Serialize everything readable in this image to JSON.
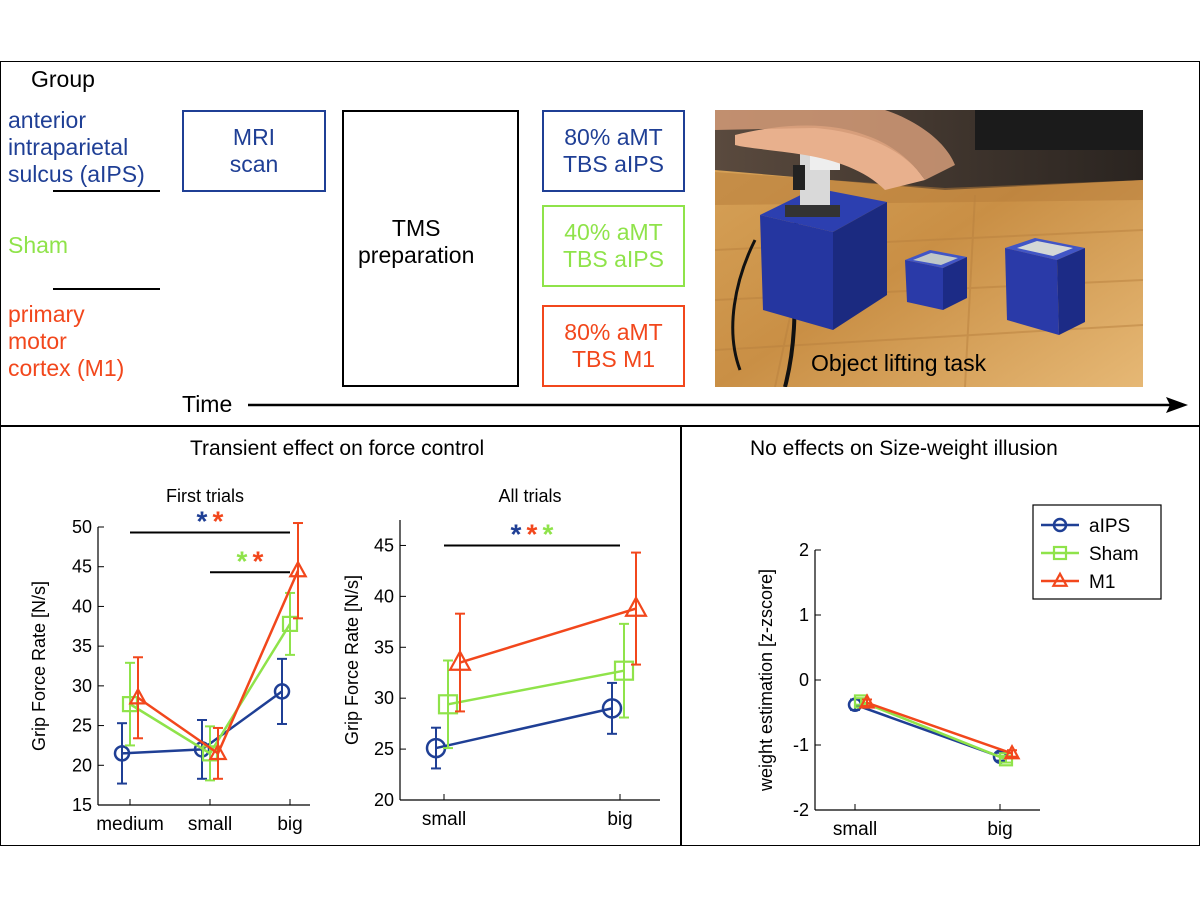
{
  "colors": {
    "aips": "#1f3f95",
    "sham": "#8fe34a",
    "m1": "#f2471c",
    "black": "#000000"
  },
  "top": {
    "group_heading": "Group",
    "groups": [
      {
        "label": "anterior\nintraparietal\nsulcus (aIPS)",
        "color": "#1f3f95"
      },
      {
        "label": "Sham",
        "color": "#8fe34a"
      },
      {
        "label": "primary\nmotor\ncortex (M1)",
        "color": "#f2471c"
      }
    ],
    "mri_box": "MRI\nscan",
    "tms_box": "TMS\npreparation",
    "tbs_boxes": [
      "80% aMT\nTBS aIPS",
      "40% aMT\nTBS aIPS",
      "80% aMT\nTBS M1"
    ],
    "photo_caption": "Object lifting task",
    "time_label": "Time"
  },
  "bottom_left_title": "Transient effect on force control",
  "bottom_right_title": "No effects on Size-weight illusion",
  "chart_data": [
    {
      "type": "line",
      "title": "First trials",
      "ylabel": "Grip Force Rate [N/s]",
      "categories": [
        "medium",
        "small",
        "big"
      ],
      "ylim": [
        15,
        50
      ],
      "yticks": [
        15,
        20,
        25,
        30,
        35,
        40,
        45,
        50
      ],
      "significance": [
        {
          "from": "medium",
          "to": "big",
          "y": 49.3,
          "stars": [
            "*",
            "*"
          ],
          "colors": [
            "#1f3f95",
            "#f2471c"
          ]
        },
        {
          "from": "small",
          "to": "big",
          "y": 44.3,
          "stars": [
            "*",
            "*"
          ],
          "colors": [
            "#8fe34a",
            "#f2471c"
          ]
        }
      ],
      "series": [
        {
          "name": "aIPS",
          "color": "#1f3f95",
          "marker": "circle",
          "values": [
            21.5,
            22,
            29.3
          ],
          "err": [
            3.8,
            3.7,
            4.1
          ]
        },
        {
          "name": "Sham",
          "color": "#8fe34a",
          "marker": "square",
          "values": [
            27.7,
            21.5,
            37.8
          ],
          "err": [
            5.2,
            3.4,
            3.9
          ]
        },
        {
          "name": "M1",
          "color": "#f2471c",
          "marker": "triangle",
          "values": [
            28.5,
            21.5,
            44.5
          ],
          "err": [
            5.1,
            3.2,
            6.0
          ]
        }
      ]
    },
    {
      "type": "line",
      "title": "All trials",
      "ylabel": "Grip Force Rate [N/s]",
      "categories": [
        "small",
        "big"
      ],
      "ylim": [
        20,
        47.5
      ],
      "yticks": [
        20,
        25,
        30,
        35,
        40,
        45
      ],
      "significance": [
        {
          "from": "small",
          "to": "big",
          "y": 45,
          "stars": [
            "*",
            "*",
            "*"
          ],
          "colors": [
            "#1f3f95",
            "#f2471c",
            "#8fe34a"
          ]
        }
      ],
      "series": [
        {
          "name": "aIPS",
          "color": "#1f3f95",
          "marker": "circle",
          "values": [
            25.1,
            29
          ],
          "err": [
            2,
            2.5
          ]
        },
        {
          "name": "Sham",
          "color": "#8fe34a",
          "marker": "square",
          "values": [
            29.4,
            32.7
          ],
          "err": [
            4.3,
            4.6
          ]
        },
        {
          "name": "M1",
          "color": "#f2471c",
          "marker": "triangle",
          "values": [
            33.5,
            38.8
          ],
          "err": [
            4.8,
            5.5
          ]
        }
      ]
    },
    {
      "type": "line",
      "ylabel": "weight estimation [z-zscore]",
      "categories": [
        "small",
        "big"
      ],
      "ylim": [
        -2,
        2
      ],
      "yticks": [
        -2,
        -1,
        0,
        1,
        2
      ],
      "legend_position": "top-right",
      "series": [
        {
          "name": "aIPS",
          "color": "#1f3f95",
          "marker": "circle",
          "values": [
            -0.38,
            -1.18
          ],
          "err": [
            0.08,
            0.06
          ]
        },
        {
          "name": "Sham",
          "color": "#8fe34a",
          "marker": "square",
          "values": [
            -0.33,
            -1.22
          ],
          "err": [
            0.05,
            0.05
          ]
        },
        {
          "name": "M1",
          "color": "#f2471c",
          "marker": "triangle",
          "values": [
            -0.35,
            -1.13
          ],
          "err": [
            0.05,
            0.05
          ]
        }
      ]
    }
  ]
}
